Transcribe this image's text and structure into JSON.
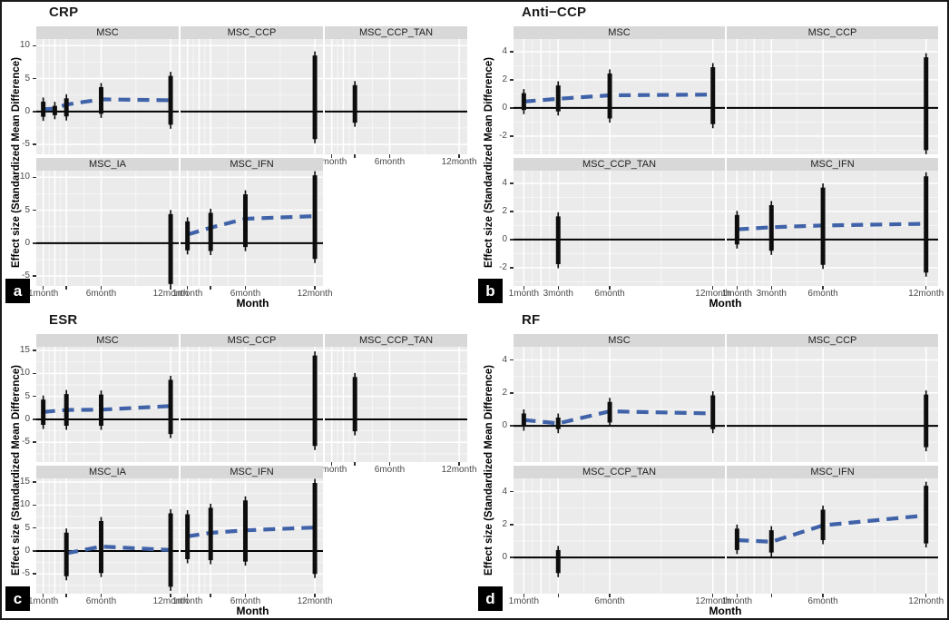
{
  "chart_data": {
    "type": "pointrange-facet-grid",
    "ylabel": "Effect size (Standardized Mean Difference)",
    "xlabel": "Month",
    "legend": "none",
    "grid": "on",
    "colors": {
      "plot_bg": "#ebebeb",
      "strip_bg": "#d8d8d8",
      "grid_major": "#ffffff",
      "grid_minor": "rgba(255,255,255,0.65)",
      "error_bar": "#0d0d0d",
      "zero_line": "#000000",
      "trend": "#3f62a8"
    },
    "x_unit": "month",
    "xlim": [
      0.4,
      12.7
    ],
    "grid_x_major": [
      1,
      2,
      3,
      6,
      12
    ],
    "grid_x_minor": [
      1.5,
      2.5,
      4.5,
      9
    ],
    "panels": [
      {
        "label": "a",
        "title": "CRP",
        "columns": 3,
        "ylim": [
          -6.5,
          11
        ],
        "yticks": [
          10,
          5,
          0,
          -5
        ],
        "grid_y_minor": [
          7.5,
          2.5,
          -2.5
        ],
        "xticks": [
          {
            "m": 1,
            "label": "1month"
          },
          {
            "m": 3,
            "label": ""
          },
          {
            "m": 6,
            "label": "6month"
          },
          {
            "m": 12,
            "label": "12month"
          }
        ],
        "facets": [
          {
            "name": "MSC",
            "row": 0,
            "col": 0,
            "own_axis": false,
            "points": [
              {
                "m": 1,
                "lo": -0.8,
                "hi": 1.5
              },
              {
                "m": 2,
                "lo": -0.55,
                "hi": 0.85
              },
              {
                "m": 3,
                "lo": -0.75,
                "hi": 2.0
              },
              {
                "m": 6,
                "lo": -0.35,
                "hi": 3.7
              },
              {
                "m": 12,
                "lo": -2.0,
                "hi": 5.4
              }
            ],
            "trend": [
              [
                1,
                0.35
              ],
              [
                2,
                0.45
              ],
              [
                3,
                1.05
              ],
              [
                6,
                1.85
              ],
              [
                12,
                1.7
              ]
            ]
          },
          {
            "name": "MSC_CCP",
            "row": 0,
            "col": 1,
            "own_axis": false,
            "points": [
              {
                "m": 12,
                "lo": -4.2,
                "hi": 8.5
              }
            ],
            "trend": []
          },
          {
            "name": "MSC_CCP_TAN",
            "row": 0,
            "col": 2,
            "own_axis": true,
            "points": [
              {
                "m": 3,
                "lo": -1.7,
                "hi": 4.0
              }
            ],
            "trend": []
          },
          {
            "name": "MSC_IA",
            "row": 1,
            "col": 0,
            "own_axis": false,
            "points": [
              {
                "m": 12,
                "lo": -6.2,
                "hi": 4.4
              }
            ],
            "trend": []
          },
          {
            "name": "MSC_IFN",
            "row": 1,
            "col": 1,
            "own_axis": false,
            "points": [
              {
                "m": 1,
                "lo": -1.1,
                "hi": 3.3
              },
              {
                "m": 3,
                "lo": -1.2,
                "hi": 4.6
              },
              {
                "m": 6,
                "lo": -0.6,
                "hi": 7.4
              },
              {
                "m": 12,
                "lo": -2.4,
                "hi": 10.3
              }
            ],
            "trend": [
              [
                1,
                1.3
              ],
              [
                3,
                2.35
              ],
              [
                6,
                3.7
              ],
              [
                12,
                4.1
              ]
            ]
          }
        ]
      },
      {
        "label": "b",
        "title": "Anti−CCP",
        "columns": 2,
        "ylim": [
          -3.3,
          4.9
        ],
        "yticks": [
          4,
          2,
          0,
          -2
        ],
        "grid_y_minor": [
          3,
          1,
          -1,
          -3
        ],
        "xticks": [
          {
            "m": 1,
            "label": "1month"
          },
          {
            "m": 3,
            "label": "3month"
          },
          {
            "m": 6,
            "label": "6month"
          },
          {
            "m": 12,
            "label": "12month"
          }
        ],
        "facets": [
          {
            "name": "MSC",
            "row": 0,
            "col": 0,
            "own_axis": false,
            "points": [
              {
                "m": 1,
                "lo": -0.15,
                "hi": 1.05
              },
              {
                "m": 3,
                "lo": -0.25,
                "hi": 1.6
              },
              {
                "m": 6,
                "lo": -0.75,
                "hi": 2.45
              },
              {
                "m": 12,
                "lo": -1.15,
                "hi": 2.9
              }
            ],
            "trend": [
              [
                1,
                0.45
              ],
              [
                3,
                0.65
              ],
              [
                6,
                0.9
              ],
              [
                12,
                0.95
              ]
            ]
          },
          {
            "name": "MSC_CCP",
            "row": 0,
            "col": 1,
            "own_axis": false,
            "points": [
              {
                "m": 12,
                "lo": -3.0,
                "hi": 3.6
              }
            ],
            "trend": []
          },
          {
            "name": "MSC_CCP_TAN",
            "row": 1,
            "col": 0,
            "own_axis": false,
            "points": [
              {
                "m": 3,
                "lo": -1.75,
                "hi": 1.65
              }
            ],
            "trend": []
          },
          {
            "name": "MSC_IFN",
            "row": 1,
            "col": 1,
            "own_axis": false,
            "points": [
              {
                "m": 1,
                "lo": -0.35,
                "hi": 1.75
              },
              {
                "m": 3,
                "lo": -0.8,
                "hi": 2.45
              },
              {
                "m": 6,
                "lo": -1.8,
                "hi": 3.7
              },
              {
                "m": 12,
                "lo": -2.35,
                "hi": 4.5
              }
            ],
            "trend": [
              [
                1,
                0.72
              ],
              [
                3,
                0.88
              ],
              [
                6,
                1.0
              ],
              [
                12,
                1.12
              ]
            ]
          }
        ]
      },
      {
        "label": "c",
        "title": "ESR",
        "columns": 3,
        "ylim": [
          -9.3,
          15.8
        ],
        "yticks": [
          15,
          10,
          5,
          0,
          -5
        ],
        "grid_y_minor": [
          12.5,
          7.5,
          2.5,
          -2.5,
          -7.5
        ],
        "xticks": [
          {
            "m": 1,
            "label": "1month"
          },
          {
            "m": 3,
            "label": ""
          },
          {
            "m": 6,
            "label": "6month"
          },
          {
            "m": 12,
            "label": "12month"
          }
        ],
        "facets": [
          {
            "name": "MSC",
            "row": 0,
            "col": 0,
            "own_axis": false,
            "points": [
              {
                "m": 1,
                "lo": -1.2,
                "hi": 4.3
              },
              {
                "m": 3,
                "lo": -1.4,
                "hi": 5.5
              },
              {
                "m": 6,
                "lo": -1.4,
                "hi": 5.4
              },
              {
                "m": 12,
                "lo": -3.2,
                "hi": 8.6
              }
            ],
            "trend": [
              [
                1,
                1.6
              ],
              [
                3,
                2.05
              ],
              [
                6,
                2.1
              ],
              [
                12,
                2.9
              ]
            ]
          },
          {
            "name": "MSC_CCP",
            "row": 0,
            "col": 1,
            "own_axis": false,
            "points": [
              {
                "m": 12,
                "lo": -5.8,
                "hi": 13.9
              }
            ],
            "trend": []
          },
          {
            "name": "MSC_CCP_TAN",
            "row": 0,
            "col": 2,
            "own_axis": true,
            "points": [
              {
                "m": 3,
                "lo": -2.6,
                "hi": 9.2
              }
            ],
            "trend": []
          },
          {
            "name": "MSC_IA",
            "row": 1,
            "col": 0,
            "own_axis": false,
            "points": [
              {
                "m": 3,
                "lo": -5.5,
                "hi": 4.0
              },
              {
                "m": 6,
                "lo": -4.8,
                "hi": 6.5
              },
              {
                "m": 12,
                "lo": -7.8,
                "hi": 8.2
              }
            ],
            "trend": [
              [
                3,
                -0.5
              ],
              [
                6,
                0.95
              ],
              [
                12,
                0.2
              ]
            ]
          },
          {
            "name": "MSC_IFN",
            "row": 1,
            "col": 1,
            "own_axis": false,
            "points": [
              {
                "m": 1,
                "lo": -1.8,
                "hi": 8.0
              },
              {
                "m": 3,
                "lo": -2.0,
                "hi": 9.4
              },
              {
                "m": 6,
                "lo": -2.3,
                "hi": 11.0
              },
              {
                "m": 12,
                "lo": -5.0,
                "hi": 14.8
              }
            ],
            "trend": [
              [
                1,
                3.2
              ],
              [
                3,
                3.95
              ],
              [
                6,
                4.5
              ],
              [
                12,
                5.1
              ]
            ]
          }
        ]
      },
      {
        "label": "d",
        "title": "RF",
        "columns": 2,
        "ylim": [
          -2.2,
          4.8
        ],
        "yticks": [
          4,
          2,
          0
        ],
        "grid_y_minor": [
          3,
          1,
          -1
        ],
        "xticks": [
          {
            "m": 1,
            "label": "1month"
          },
          {
            "m": 3,
            "label": ""
          },
          {
            "m": 6,
            "label": "6month"
          },
          {
            "m": 12,
            "label": "12month"
          }
        ],
        "facets": [
          {
            "name": "MSC",
            "row": 0,
            "col": 0,
            "own_axis": false,
            "points": [
              {
                "m": 1,
                "lo": -0.05,
                "hi": 0.75
              },
              {
                "m": 3,
                "lo": -0.2,
                "hi": 0.5
              },
              {
                "m": 6,
                "lo": 0.2,
                "hi": 1.45
              },
              {
                "m": 12,
                "lo": -0.2,
                "hi": 1.85
              }
            ],
            "trend": [
              [
                1,
                0.35
              ],
              [
                3,
                0.15
              ],
              [
                6,
                0.88
              ],
              [
                12,
                0.75
              ]
            ]
          },
          {
            "name": "MSC_CCP",
            "row": 0,
            "col": 1,
            "own_axis": false,
            "points": [
              {
                "m": 12,
                "lo": -1.3,
                "hi": 1.9
              }
            ],
            "trend": []
          },
          {
            "name": "MSC_CCP_TAN",
            "row": 1,
            "col": 0,
            "own_axis": false,
            "points": [
              {
                "m": 3,
                "lo": -0.95,
                "hi": 0.45
              }
            ],
            "trend": []
          },
          {
            "name": "MSC_IFN",
            "row": 1,
            "col": 1,
            "own_axis": false,
            "points": [
              {
                "m": 1,
                "lo": 0.45,
                "hi": 1.75
              },
              {
                "m": 3,
                "lo": 0.3,
                "hi": 1.65
              },
              {
                "m": 6,
                "lo": 1.05,
                "hi": 2.9
              },
              {
                "m": 12,
                "lo": 0.85,
                "hi": 4.35
              }
            ],
            "trend": [
              [
                1,
                1.05
              ],
              [
                3,
                0.95
              ],
              [
                6,
                1.95
              ],
              [
                12,
                2.55
              ]
            ]
          }
        ]
      }
    ]
  }
}
